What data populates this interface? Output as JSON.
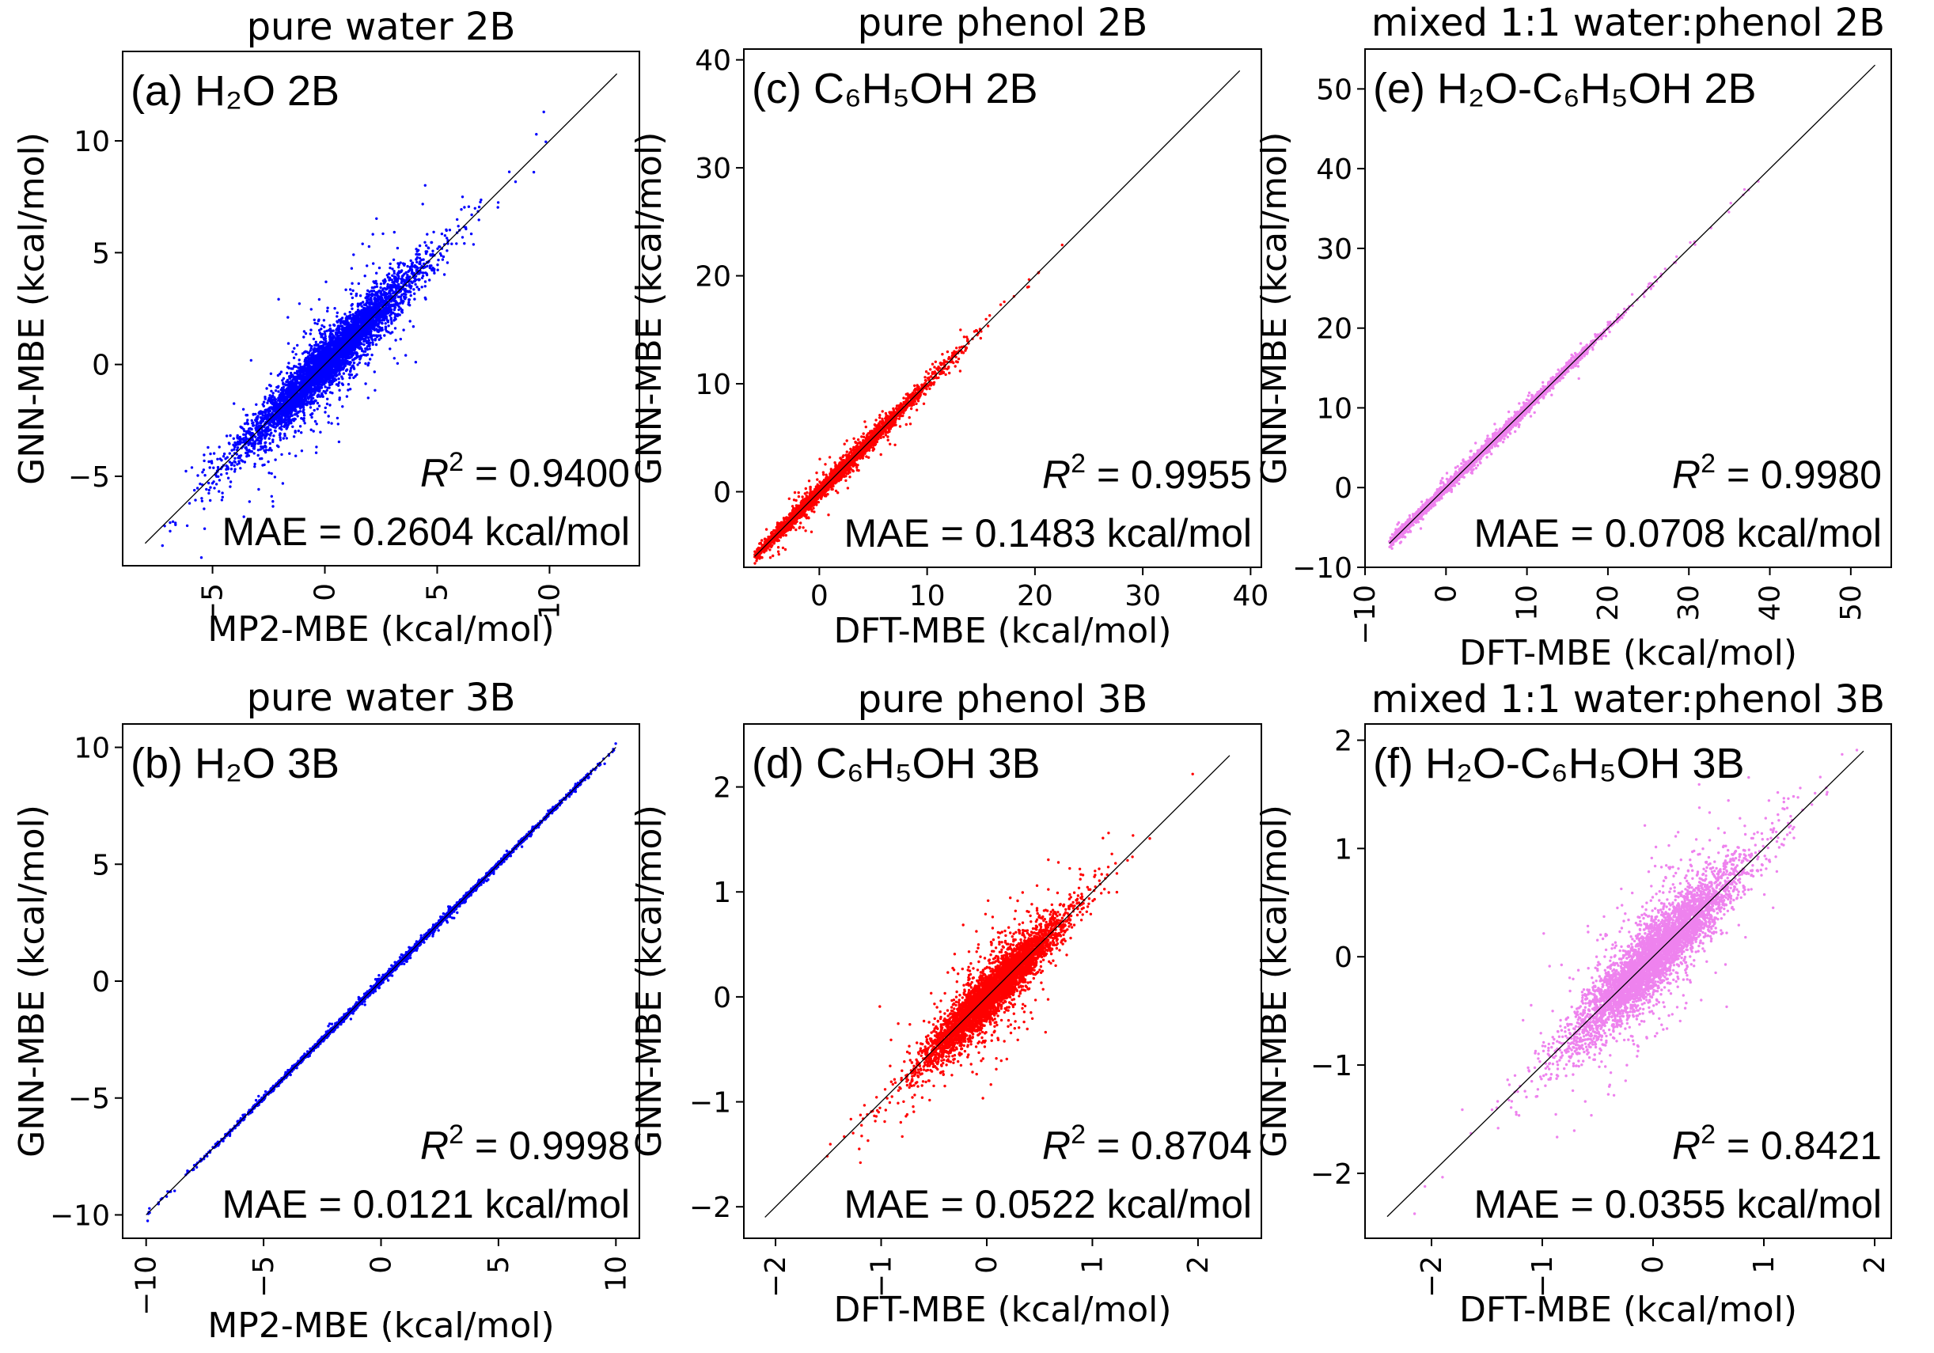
{
  "figure_caption_items": [],
  "chart_data": [
    {
      "id": "a",
      "type": "scatter",
      "title": "pure water 2B",
      "panel_label": "(a) H₂O 2B",
      "xlabel": "MP2-MBE (kcal/mol)",
      "ylabel": "GNN-MBE (kcal/mol)",
      "xlim": [
        -9,
        14
      ],
      "ylim": [
        -9,
        14
      ],
      "xticks": [
        -5,
        0,
        5,
        10
      ],
      "yticks": [
        -5,
        0,
        5,
        10
      ],
      "tick_labels": {
        "x": [
          "−5",
          "0",
          "5",
          "10"
        ],
        "y": [
          "−5",
          "0",
          "5",
          "10"
        ]
      },
      "color": "#0000ff",
      "r2_label": "R",
      "r2_sup": "2",
      "r2_value": " = 0.9400",
      "mae": "MAE = 0.2604 kcal/mol",
      "points": {
        "n": 5000,
        "mean": 0.2,
        "std": 1.8,
        "noise": 0.55,
        "range": [
          -8,
          13
        ]
      }
    },
    {
      "id": "b",
      "type": "scatter",
      "title": "pure water 3B",
      "panel_label": "(b) H₂O 3B",
      "xlabel": "MP2-MBE (kcal/mol)",
      "ylabel": "GNN-MBE (kcal/mol)",
      "xlim": [
        -11,
        11
      ],
      "ylim": [
        -11,
        11
      ],
      "xticks": [
        -10,
        -5,
        0,
        5,
        10
      ],
      "yticks": [
        -10,
        -5,
        0,
        5,
        10
      ],
      "tick_labels": {
        "x": [
          "−10",
          "−5",
          "0",
          "5",
          "10"
        ],
        "y": [
          "−10",
          "−5",
          "0",
          "5",
          "10"
        ]
      },
      "color": "#0000ff",
      "r2_label": "R",
      "r2_sup": "2",
      "r2_value": " = 0.9998",
      "mae": "MAE = 0.0121 kcal/mol",
      "points": {
        "n": 3500,
        "mean": 1.0,
        "std": 3.2,
        "noise": 0.05,
        "range": [
          -10,
          10
        ]
      }
    },
    {
      "id": "c",
      "type": "scatter",
      "title": "pure phenol 2B",
      "panel_label": "(c) C₆H₅OH 2B",
      "xlabel": "DFT-MBE (kcal/mol)",
      "ylabel": "GNN-MBE (kcal/mol)",
      "xlim": [
        -7,
        41
      ],
      "ylim": [
        -7,
        41
      ],
      "xticks": [
        0,
        10,
        20,
        30,
        40
      ],
      "yticks": [
        0,
        10,
        20,
        30,
        40
      ],
      "tick_labels": {
        "x": [
          "0",
          "10",
          "20",
          "30",
          "40"
        ],
        "y": [
          "0",
          "10",
          "20",
          "30",
          "40"
        ]
      },
      "color": "#ff0000",
      "r2_label": "R",
      "r2_sup": "2",
      "r2_value": " = 0.9955",
      "mae": "MAE = 0.1483 kcal/mol",
      "points": {
        "n": 3500,
        "mean": 1.5,
        "std": 4.5,
        "noise": 0.35,
        "range": [
          -6,
          39
        ]
      }
    },
    {
      "id": "d",
      "type": "scatter",
      "title": "pure phenol 3B",
      "panel_label": "(d) C₆H₅OH 3B",
      "xlabel": "DFT-MBE (kcal/mol)",
      "ylabel": "GNN-MBE (kcal/mol)",
      "xlim": [
        -2.3,
        2.6
      ],
      "ylim": [
        -2.3,
        2.6
      ],
      "xticks": [
        -2,
        -1,
        0,
        1,
        2
      ],
      "yticks": [
        -2,
        -1,
        0,
        1,
        2
      ],
      "tick_labels": {
        "x": [
          "−2",
          "−1",
          "0",
          "1",
          "2"
        ],
        "y": [
          "−2",
          "−1",
          "0",
          "1",
          "2"
        ]
      },
      "color": "#ff0000",
      "r2_label": "R",
      "r2_sup": "2",
      "r2_value": " = 0.8704",
      "mae": "MAE = 0.0522 kcal/mol",
      "points": {
        "n": 5000,
        "mean": 0.05,
        "std": 0.3,
        "noise": 0.11,
        "range": [
          -2.1,
          2.3
        ]
      }
    },
    {
      "id": "e",
      "type": "scatter",
      "title": "mixed 1:1 water:phenol 2B",
      "panel_label": "(e) H₂O-C₆H₅OH 2B",
      "xlabel": "DFT-MBE (kcal/mol)",
      "ylabel": "GNN-MBE (kcal/mol)",
      "xlim": [
        -10,
        55
      ],
      "ylim": [
        -10,
        55
      ],
      "xticks": [
        -10,
        0,
        10,
        20,
        30,
        40,
        50
      ],
      "yticks": [
        -10,
        0,
        10,
        20,
        30,
        40,
        50
      ],
      "tick_labels": {
        "x": [
          "−10",
          "0",
          "10",
          "20",
          "30",
          "40",
          "50"
        ],
        "y": [
          "−10",
          "0",
          "10",
          "20",
          "30",
          "40",
          "50"
        ]
      },
      "color": "#ee82ee",
      "r2_label": "R",
      "r2_sup": "2",
      "r2_value": " = 0.9980",
      "mae": "MAE = 0.0708 kcal/mol",
      "points": {
        "n": 3500,
        "mean": 4.0,
        "std": 7.0,
        "noise": 0.3,
        "range": [
          -7,
          53
        ]
      }
    },
    {
      "id": "f",
      "type": "scatter",
      "title": "mixed 1:1 water:phenol 3B",
      "panel_label": "(f) H₂O-C₆H₅OH 3B",
      "xlabel": "DFT-MBE (kcal/mol)",
      "ylabel": "GNN-MBE (kcal/mol)",
      "xlim": [
        -2.6,
        2.15
      ],
      "ylim": [
        -2.6,
        2.15
      ],
      "xticks": [
        -2,
        -1,
        0,
        1,
        2
      ],
      "yticks": [
        -2,
        -1,
        0,
        1,
        2
      ],
      "tick_labels": {
        "x": [
          "−2",
          "−1",
          "0",
          "1",
          "2"
        ],
        "y": [
          "−2",
          "−1",
          "0",
          "1",
          "2"
        ]
      },
      "color": "#ee82ee",
      "r2_label": "R",
      "r2_sup": "2",
      "r2_value": " = 0.8421",
      "mae": "MAE = 0.0355 kcal/mol",
      "points": {
        "n": 5000,
        "mean": 0.0,
        "std": 0.35,
        "noise": 0.15,
        "range": [
          -2.4,
          1.9
        ]
      }
    }
  ]
}
